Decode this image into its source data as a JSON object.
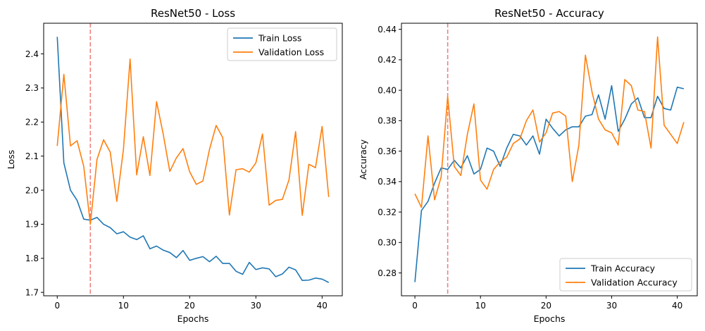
{
  "colors": {
    "train": "#1f77b4",
    "validation": "#ff7f0e",
    "marker": "#f08080"
  },
  "chart_data": [
    {
      "type": "line",
      "title": "ResNet50 - Loss",
      "xlabel": "Epochs",
      "ylabel": "Loss",
      "xlim": [
        -2.05,
        43.05
      ],
      "ylim": [
        1.69,
        2.49
      ],
      "xticks": [
        0,
        10,
        20,
        30,
        40
      ],
      "yticks": [
        1.7,
        1.8,
        1.9,
        2.0,
        2.1,
        2.2,
        2.3,
        2.4
      ],
      "ytick_labels": [
        "1.7",
        "1.8",
        "1.9",
        "2.0",
        "2.1",
        "2.2",
        "2.3",
        "2.4"
      ],
      "vline_x": 5,
      "legend_position": "top-right",
      "x": [
        0,
        1,
        2,
        3,
        4,
        5,
        6,
        7,
        8,
        9,
        10,
        11,
        12,
        13,
        14,
        15,
        16,
        17,
        18,
        19,
        20,
        21,
        22,
        23,
        24,
        25,
        26,
        27,
        28,
        29,
        30,
        31,
        32,
        33,
        34,
        35,
        36,
        37,
        38,
        39,
        40,
        41
      ],
      "series": [
        {
          "name": "Train Loss",
          "color_key": "train",
          "values": [
            2.45,
            2.08,
            2.0,
            1.97,
            1.915,
            1.912,
            1.92,
            1.9,
            1.89,
            1.872,
            1.878,
            1.862,
            1.855,
            1.866,
            1.828,
            1.836,
            1.824,
            1.817,
            1.802,
            1.823,
            1.794,
            1.8,
            1.805,
            1.79,
            1.806,
            1.785,
            1.785,
            1.762,
            1.753,
            1.788,
            1.767,
            1.772,
            1.769,
            1.746,
            1.754,
            1.774,
            1.766,
            1.735,
            1.736,
            1.742,
            1.739,
            1.729
          ]
        },
        {
          "name": "Validation Loss",
          "color_key": "validation",
          "values": [
            2.13,
            2.34,
            2.13,
            2.145,
            2.07,
            1.9,
            2.09,
            2.148,
            2.112,
            1.967,
            2.12,
            2.385,
            2.045,
            2.157,
            2.043,
            2.26,
            2.165,
            2.055,
            2.095,
            2.122,
            2.054,
            2.017,
            2.027,
            2.12,
            2.19,
            2.154,
            1.927,
            2.06,
            2.063,
            2.053,
            2.08,
            2.165,
            1.956,
            1.97,
            1.973,
            2.03,
            2.172,
            1.926,
            2.076,
            2.066,
            2.187,
            1.98
          ]
        }
      ]
    },
    {
      "type": "line",
      "title": "ResNet50 - Accuracy",
      "xlabel": "Epochs",
      "ylabel": "Accuracy",
      "xlim": [
        -2.05,
        43.05
      ],
      "ylim": [
        0.265,
        0.444
      ],
      "xticks": [
        0,
        10,
        20,
        30,
        40
      ],
      "yticks": [
        0.28,
        0.3,
        0.32,
        0.34,
        0.36,
        0.38,
        0.4,
        0.42,
        0.44
      ],
      "ytick_labels": [
        "0.28",
        "0.30",
        "0.32",
        "0.34",
        "0.36",
        "0.38",
        "0.40",
        "0.42",
        "0.44"
      ],
      "vline_x": 5,
      "legend_position": "bottom-right",
      "x": [
        0,
        1,
        2,
        3,
        4,
        5,
        6,
        7,
        8,
        9,
        10,
        11,
        12,
        13,
        14,
        15,
        16,
        17,
        18,
        19,
        20,
        21,
        22,
        23,
        24,
        25,
        26,
        27,
        28,
        29,
        30,
        31,
        32,
        33,
        34,
        35,
        36,
        37,
        38,
        39,
        40,
        41
      ],
      "series": [
        {
          "name": "Train Accuracy",
          "color_key": "train",
          "values": [
            0.274,
            0.321,
            0.327,
            0.339,
            0.349,
            0.348,
            0.354,
            0.349,
            0.357,
            0.345,
            0.348,
            0.362,
            0.36,
            0.35,
            0.362,
            0.371,
            0.37,
            0.364,
            0.37,
            0.358,
            0.381,
            0.375,
            0.37,
            0.374,
            0.376,
            0.376,
            0.383,
            0.384,
            0.397,
            0.381,
            0.403,
            0.373,
            0.381,
            0.391,
            0.395,
            0.382,
            0.382,
            0.396,
            0.388,
            0.387,
            0.402,
            0.401
          ]
        },
        {
          "name": "Validation Accuracy",
          "color_key": "validation",
          "values": [
            0.332,
            0.323,
            0.37,
            0.328,
            0.343,
            0.396,
            0.35,
            0.344,
            0.371,
            0.391,
            0.341,
            0.335,
            0.348,
            0.353,
            0.356,
            0.365,
            0.368,
            0.38,
            0.387,
            0.366,
            0.372,
            0.385,
            0.386,
            0.383,
            0.34,
            0.364,
            0.423,
            0.399,
            0.381,
            0.374,
            0.372,
            0.364,
            0.407,
            0.403,
            0.387,
            0.386,
            0.362,
            0.435,
            0.377,
            0.371,
            0.365,
            0.379
          ]
        }
      ]
    }
  ]
}
